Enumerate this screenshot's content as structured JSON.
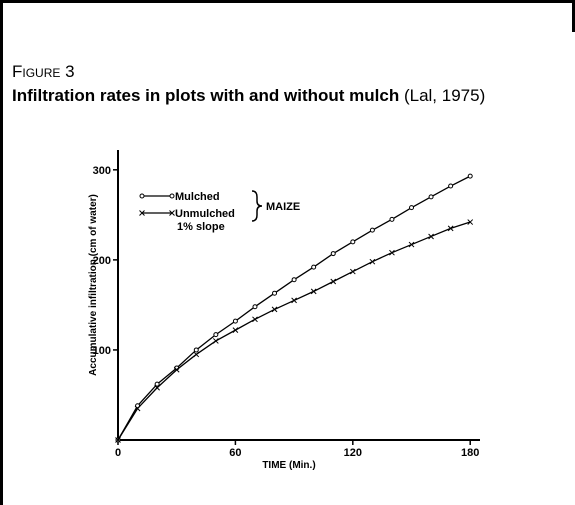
{
  "figure_label": "Figure 3",
  "title_bold": "Infiltration rates in plots with and without mulch",
  "title_source": "(Lal, 1975)",
  "chart_data": {
    "type": "line",
    "x_label": "TIME (Min.)",
    "y_label": "Accumulative infiltration (cm of water)",
    "x": [
      0,
      10,
      20,
      30,
      40,
      50,
      60,
      70,
      80,
      90,
      100,
      110,
      120,
      130,
      140,
      150,
      160,
      170,
      180
    ],
    "series": [
      {
        "name": "Mulched",
        "color": "#000000",
        "marker": "circle",
        "values": [
          0,
          38,
          62,
          80,
          100,
          117,
          132,
          148,
          163,
          178,
          192,
          207,
          220,
          233,
          245,
          258,
          270,
          282,
          293
        ]
      },
      {
        "name": "Unmulched",
        "color": "#000000",
        "marker": "x",
        "values": [
          0,
          35,
          58,
          78,
          95,
          110,
          122,
          134,
          145,
          155,
          165,
          176,
          187,
          198,
          208,
          217,
          226,
          235,
          242
        ]
      }
    ],
    "annotations": [
      "MAIZE",
      "1% slope"
    ],
    "xlim": [
      0,
      185
    ],
    "ylim": [
      0,
      322
    ],
    "xticks": [
      0,
      60,
      120,
      180
    ],
    "yticks": [
      100,
      200,
      300
    ],
    "grid": false
  }
}
